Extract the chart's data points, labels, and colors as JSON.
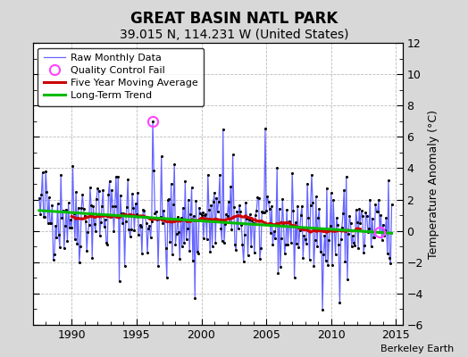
{
  "title": "GREAT BASIN NATL PARK",
  "subtitle": "39.015 N, 114.231 W (United States)",
  "ylabel": "Temperature Anomaly (°C)",
  "credit": "Berkeley Earth",
  "xlim": [
    1987.0,
    2015.5
  ],
  "ylim": [
    -6,
    12
  ],
  "yticks": [
    -6,
    -4,
    -2,
    0,
    2,
    4,
    6,
    8,
    10,
    12
  ],
  "xticks": [
    1990,
    1995,
    2000,
    2005,
    2010,
    2015
  ],
  "raw_line_color": "#6666ff",
  "raw_dot_color": "#000000",
  "ma_color": "#cc0000",
  "trend_color": "#00bb00",
  "qc_color": "#ff44ff",
  "background_color": "#d8d8d8",
  "plot_bg_color": "#ffffff",
  "grid_color": "#bbbbbb",
  "title_fontsize": 12,
  "subtitle_fontsize": 10,
  "tick_labelsize": 9,
  "legend_fontsize": 8,
  "credit_fontsize": 8
}
